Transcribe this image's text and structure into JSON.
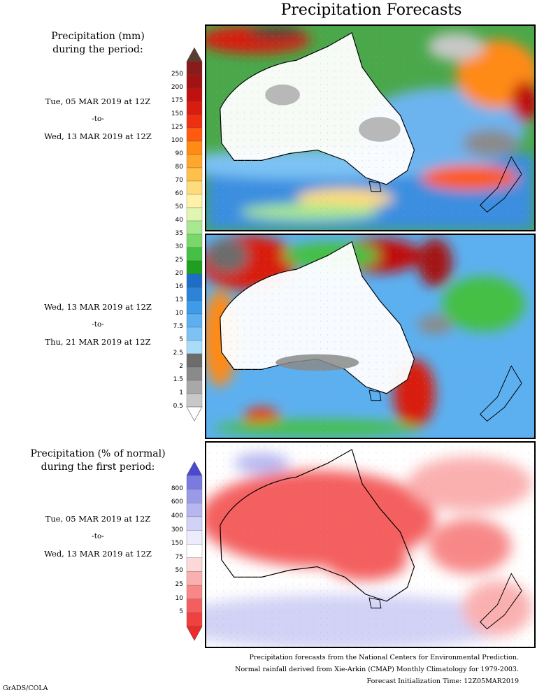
{
  "title": "Precipitation Forecasts",
  "amount_legend": {
    "heading_line1": "Precipitation (mm)",
    "heading_line2": "during the period:",
    "ticks": [
      "250",
      "200",
      "175",
      "150",
      "125",
      "100",
      "90",
      "80",
      "70",
      "60",
      "50",
      "40",
      "35",
      "30",
      "25",
      "20",
      "16",
      "13",
      "10",
      "7.5",
      "5",
      "2.5",
      "2",
      "1.5",
      "1",
      "0.5"
    ],
    "colors": [
      "#8b1a1a",
      "#a31212",
      "#c01010",
      "#d81c10",
      "#ee3010",
      "#ff5a10",
      "#ff8a14",
      "#ffa72a",
      "#ffc04a",
      "#ffdc7a",
      "#fff2a8",
      "#e0f5b0",
      "#a8e88e",
      "#78d86a",
      "#44c044",
      "#1ea01e",
      "#1c6ec8",
      "#2c84d8",
      "#3c9cea",
      "#5cb0f0",
      "#7cc2f4",
      "#a8dcf8",
      "#6c6c6c",
      "#8a8a8a",
      "#a8a8a8",
      "#c8c8c8"
    ],
    "top_color": "#5a3d32",
    "bottom_color": "#ffffff"
  },
  "period1": {
    "start": "Tue, 05 MAR 2019 at 12Z",
    "sep": "-to-",
    "end": "Wed, 13 MAR 2019 at 12Z"
  },
  "period2": {
    "start": "Wed, 13 MAR 2019 at 12Z",
    "sep": "-to-",
    "end": "Thu, 21 MAR 2019 at 12Z"
  },
  "percent_legend": {
    "heading_line1": "Precipitation (% of normal)",
    "heading_line2": "during the first period:",
    "ticks": [
      "800",
      "600",
      "400",
      "300",
      "150",
      "75",
      "50",
      "25",
      "10",
      "5"
    ],
    "colors": [
      "#7a7ae0",
      "#9a9ae8",
      "#b6b6f0",
      "#d2d2f6",
      "#ececfc",
      "#ffffff",
      "#fdd8d8",
      "#fbb0b0",
      "#f88888",
      "#f45e5e",
      "#f04040"
    ],
    "top_color": "#4a4ad0",
    "bottom_color": "#ee2a2a"
  },
  "period3": {
    "start": "Tue, 05 MAR 2019 at 12Z",
    "sep": "-to-",
    "end": "Wed, 13 MAR 2019 at 12Z"
  },
  "footer": {
    "line1": "Precipitation forecasts from the National Centers for Environmental Prediction.",
    "line2": "Normal rainfall derived from Xie-Arkin (CMAP) Monthly Climatology for 1979-2003.",
    "line3": "Forecast Initialization Time: 12Z05MAR2019"
  },
  "credit": "GrADS/COLA"
}
